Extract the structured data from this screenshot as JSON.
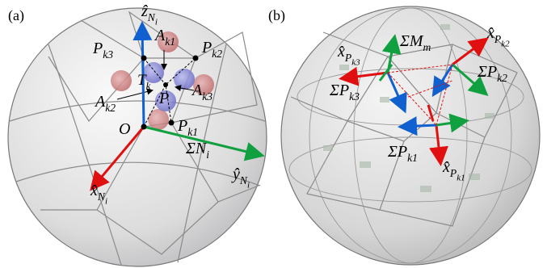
{
  "panels": [
    {
      "tag": "(a)",
      "labels": [
        {
          "text": "ẑ",
          "sub": "N",
          "subsub": "i"
        },
        {
          "text": "P",
          "sub": "k3"
        },
        {
          "text": "A",
          "sub": "k1"
        },
        {
          "text": "P",
          "sub": "k2"
        },
        {
          "text": "T",
          "sub": "k"
        },
        {
          "text": "P"
        },
        {
          "text": "A",
          "sub": "k3"
        },
        {
          "text": "A",
          "sub": "k2"
        },
        {
          "text": "O"
        },
        {
          "text": "P",
          "sub": "k1"
        },
        {
          "text": "ΣN",
          "sub": "i"
        },
        {
          "text": "ŷ",
          "sub": "N",
          "subsub": "i"
        },
        {
          "text": "x̂",
          "sub": "N",
          "subsub": "i"
        }
      ]
    },
    {
      "tag": "(b)",
      "labels": [
        {
          "text": "x̂",
          "sub": "P",
          "subsub": "k3"
        },
        {
          "text": "ΣM",
          "sub": "m"
        },
        {
          "text": "x̂",
          "sub": "P",
          "subsub": "k2"
        },
        {
          "text": "ΣP",
          "sub": "k2"
        },
        {
          "text": "ΣP",
          "sub": "k3"
        },
        {
          "text": "ΣP",
          "sub": "k1"
        },
        {
          "text": "x̂",
          "sub": "P",
          "subsub": "k1"
        }
      ]
    }
  ]
}
